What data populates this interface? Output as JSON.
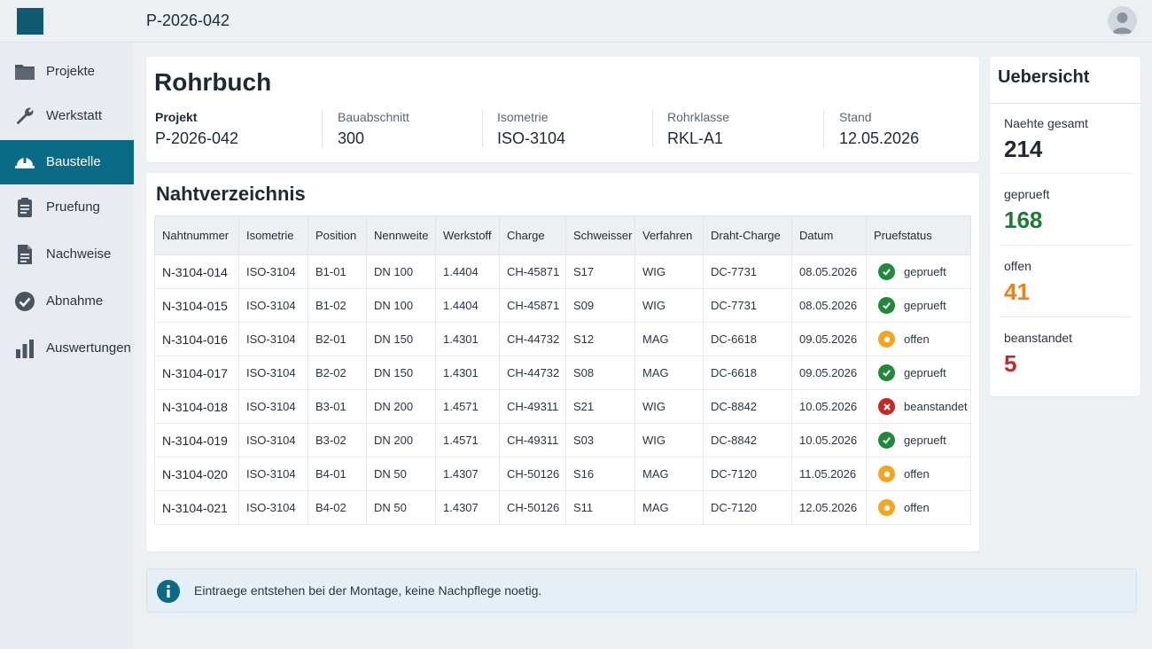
{
  "app": {
    "title": "P-2026-042"
  },
  "colors": {
    "accent": "#0b6b87",
    "logo": "#0e5a70",
    "ok": "#1f8a3a",
    "warn": "#f4a51c",
    "error": "#c62828"
  },
  "sidebar": {
    "items": [
      {
        "label": "Projekte",
        "icon": "folder-icon"
      },
      {
        "label": "Werkstatt",
        "icon": "wrench-icon"
      },
      {
        "label": "Baustelle",
        "icon": "hardhat-icon",
        "active": true
      },
      {
        "label": "Pruefung",
        "icon": "clipboard-icon"
      },
      {
        "label": "Nachweise",
        "icon": "document-icon"
      },
      {
        "label": "Abnahme",
        "icon": "check-circle-icon"
      },
      {
        "label": "Auswertungen",
        "icon": "bar-chart-icon"
      }
    ]
  },
  "header": {
    "title": "Rohrbuch",
    "meta": [
      {
        "label": "Projekt",
        "value": "P-2026-042"
      },
      {
        "label": "Bauabschnitt",
        "value": "300"
      },
      {
        "label": "Isometrie",
        "value": "ISO-3104"
      },
      {
        "label": "Rohrklasse",
        "value": "RKL-A1"
      },
      {
        "label": "Stand",
        "value": "12.05.2026"
      }
    ]
  },
  "table": {
    "title": "Nahtverzeichnis",
    "columns": [
      "Nahtnummer",
      "Isometrie",
      "Position",
      "Nennweite",
      "Werkstoff",
      "Charge",
      "Schweisser",
      "Verfahren",
      "Draht-Charge",
      "Datum",
      "Pruefstatus"
    ],
    "rows": [
      {
        "cells": [
          "N-3104-014",
          "ISO-3104",
          "B1-01",
          "DN 100",
          "1.4404",
          "CH-45871",
          "S17",
          "WIG",
          "DC-7731",
          "08.05.2026"
        ],
        "status": "geprueft",
        "status_type": "ok"
      },
      {
        "cells": [
          "N-3104-015",
          "ISO-3104",
          "B1-02",
          "DN 100",
          "1.4404",
          "CH-45871",
          "S09",
          "WIG",
          "DC-7731",
          "08.05.2026"
        ],
        "status": "geprueft",
        "status_type": "ok"
      },
      {
        "cells": [
          "N-3104-016",
          "ISO-3104",
          "B2-01",
          "DN 150",
          "1.4301",
          "CH-44732",
          "S12",
          "MAG",
          "DC-6618",
          "09.05.2026"
        ],
        "status": "offen",
        "status_type": "warn"
      },
      {
        "cells": [
          "N-3104-017",
          "ISO-3104",
          "B2-02",
          "DN 150",
          "1.4301",
          "CH-44732",
          "S08",
          "MAG",
          "DC-6618",
          "09.05.2026"
        ],
        "status": "geprueft",
        "status_type": "ok"
      },
      {
        "cells": [
          "N-3104-018",
          "ISO-3104",
          "B3-01",
          "DN 200",
          "1.4571",
          "CH-49311",
          "S21",
          "WIG",
          "DC-8842",
          "10.05.2026"
        ],
        "status": "beanstandet",
        "status_type": "error"
      },
      {
        "cells": [
          "N-3104-019",
          "ISO-3104",
          "B3-02",
          "DN 200",
          "1.4571",
          "CH-49311",
          "S03",
          "WIG",
          "DC-8842",
          "10.05.2026"
        ],
        "status": "geprueft",
        "status_type": "ok"
      },
      {
        "cells": [
          "N-3104-020",
          "ISO-3104",
          "B4-01",
          "DN 50",
          "1.4307",
          "CH-50126",
          "S16",
          "MAG",
          "DC-7120",
          "11.05.2026"
        ],
        "status": "offen",
        "status_type": "warn"
      },
      {
        "cells": [
          "N-3104-021",
          "ISO-3104",
          "B4-02",
          "DN 50",
          "1.4307",
          "CH-50126",
          "S11",
          "MAG",
          "DC-7120",
          "12.05.2026"
        ],
        "status": "offen",
        "status_type": "warn"
      }
    ]
  },
  "summary": {
    "title": "Uebersicht",
    "stats": [
      {
        "label": "Naehte gesamt",
        "value": "214",
        "color": "#1f2933"
      },
      {
        "label": "geprueft",
        "value": "168",
        "color": "#1f7a34"
      },
      {
        "label": "offen",
        "value": "41",
        "color": "#f07f1a"
      },
      {
        "label": "beanstandet",
        "value": "5",
        "color": "#c62828"
      }
    ]
  },
  "info": {
    "icon": "info-icon",
    "text": "Eintraege entstehen bei der Montage, keine Nachpflege noetig."
  }
}
